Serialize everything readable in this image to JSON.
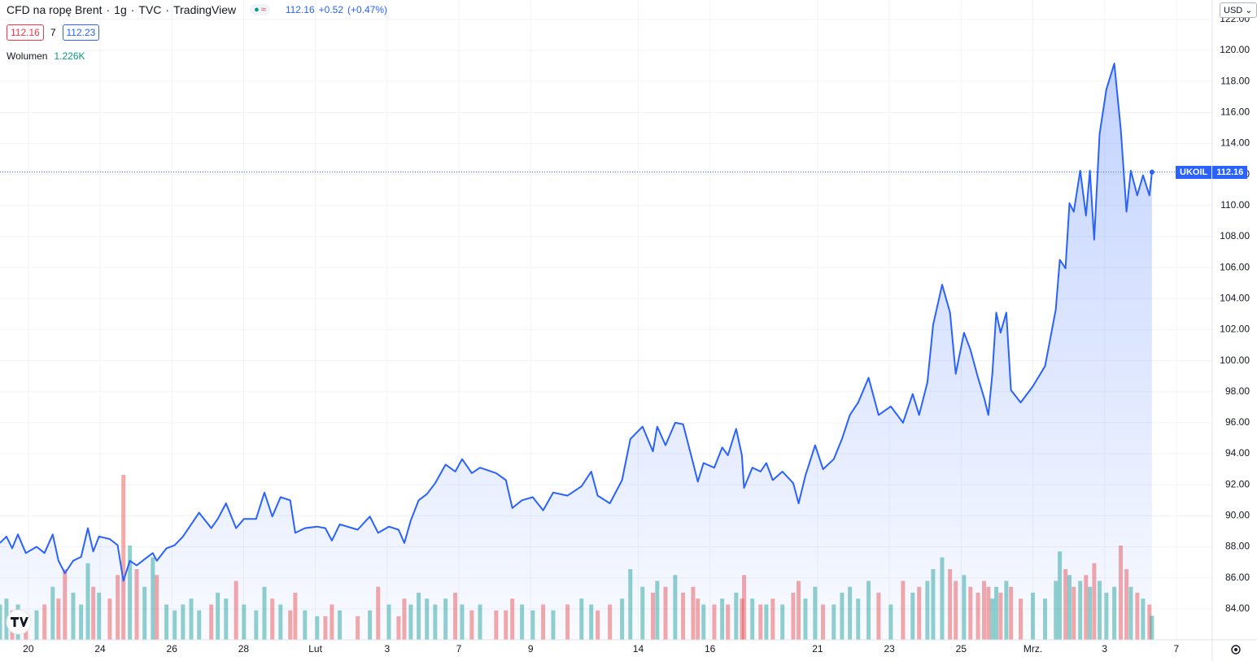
{
  "header": {
    "symbol": "CFD na ropę Brent",
    "interval": "1g",
    "source": "TVC",
    "platform": "TradingView",
    "last": "112.16",
    "change": "+0.52",
    "change_pct": "(+0.47%)",
    "sell": "112.16",
    "spread": "7",
    "buy": "112.23",
    "volume_readout": "1.226K",
    "currency": "USD",
    "ticker": "UKOIL"
  },
  "chart_data": {
    "type": "line",
    "color": "#2962ff",
    "grid": true,
    "x": [
      -0.79,
      -0.61,
      -0.45,
      -0.29,
      -0.07,
      0.23,
      0.45,
      0.68,
      0.84,
      1.02,
      1.25,
      1.47,
      1.66,
      1.81,
      1.97,
      2.27,
      2.49,
      2.65,
      2.83,
      3.02,
      3.24,
      3.47,
      3.58,
      3.85,
      4.08,
      4.31,
      4.54,
      4.76,
      5.1,
      5.28,
      5.51,
      5.79,
      6.01,
      6.35,
      6.58,
      6.8,
      7.03,
      7.3,
      7.44,
      7.71,
      8.05,
      8.28,
      8.46,
      8.68,
      9.18,
      9.52,
      9.75,
      10.05,
      10.32,
      10.48,
      10.66,
      10.88,
      11.11,
      11.34,
      11.63,
      11.9,
      12.09,
      12.36,
      12.59,
      13.04,
      13.31,
      13.49,
      13.76,
      14.06,
      14.35,
      14.63,
      15.03,
      15.42,
      15.69,
      15.87,
      16.21,
      16.55,
      16.78,
      17.12,
      17.41,
      17.53,
      17.76,
      18.03,
      18.25,
      18.53,
      18.66,
      18.82,
      19.12,
      19.34,
      19.5,
      19.73,
      19.89,
      19.95,
      20.18,
      20.41,
      20.57,
      20.75,
      21.02,
      21.32,
      21.47,
      21.66,
      21.93,
      22.15,
      22.45,
      22.68,
      22.9,
      23.13,
      23.42,
      23.7,
      24.04,
      24.38,
      24.65,
      24.83,
      25.06,
      25.22,
      25.47,
      25.69,
      25.85,
      26.08,
      26.26,
      26.47,
      26.64,
      26.76,
      26.87,
      26.98,
      27.1,
      27.26,
      27.39,
      27.66,
      28.0,
      28.34,
      28.64,
      28.75,
      28.91,
      29.02,
      29.14,
      29.32,
      29.48,
      29.59,
      29.71,
      29.86,
      30.05,
      30.27,
      30.45,
      30.61,
      30.73,
      30.91,
      31.07,
      31.25,
      31.32
    ],
    "series": [
      {
        "name": "UKOIL",
        "color": "#2962ff",
        "values": [
          88.25,
          88.66,
          87.9,
          88.8,
          87.6,
          88.0,
          87.6,
          88.8,
          87.1,
          86.3,
          87.1,
          87.35,
          89.2,
          87.7,
          88.66,
          88.5,
          88.1,
          85.8,
          87.1,
          86.8,
          87.2,
          87.6,
          87.1,
          87.9,
          88.1,
          88.66,
          89.45,
          90.2,
          89.2,
          89.8,
          90.8,
          89.2,
          89.8,
          89.8,
          91.5,
          89.95,
          91.2,
          91.0,
          88.9,
          89.2,
          89.3,
          89.2,
          88.4,
          89.45,
          89.1,
          89.95,
          88.9,
          89.3,
          89.1,
          88.25,
          89.7,
          91.0,
          91.4,
          92.1,
          93.3,
          92.85,
          93.65,
          92.75,
          93.1,
          92.75,
          92.3,
          90.5,
          91.0,
          91.2,
          90.35,
          91.5,
          91.3,
          91.9,
          92.85,
          91.3,
          90.8,
          92.3,
          94.95,
          95.75,
          94.15,
          95.75,
          94.55,
          96.0,
          95.9,
          93.4,
          92.2,
          93.4,
          93.1,
          94.4,
          93.9,
          95.6,
          93.9,
          91.8,
          93.1,
          92.85,
          93.4,
          92.3,
          92.85,
          92.1,
          90.8,
          92.6,
          94.55,
          93.0,
          93.65,
          94.95,
          96.5,
          97.3,
          98.9,
          96.5,
          97.05,
          96.0,
          97.85,
          96.5,
          98.6,
          102.3,
          104.9,
          103.1,
          99.15,
          101.8,
          100.7,
          98.9,
          97.6,
          96.5,
          99.15,
          103.1,
          101.8,
          103.1,
          98.1,
          97.3,
          98.35,
          99.65,
          103.3,
          106.5,
          105.95,
          110.15,
          109.6,
          112.25,
          109.35,
          112.25,
          107.8,
          114.6,
          117.5,
          119.15,
          114.9,
          109.6,
          112.25,
          110.65,
          111.95,
          110.65,
          112.16
        ]
      },
      {
        "name": "Wolumen",
        "axis": "y2",
        "up_color": "#26a69a",
        "down_color": "#ef5350",
        "values": [
          1.8,
          2.1,
          1.5,
          1.8,
          1.2,
          1.5,
          1.8,
          2.7,
          2.1,
          3.6,
          2.4,
          1.8,
          3.9,
          2.7,
          2.4,
          2.1,
          3.3,
          8.4,
          4.8,
          3.6,
          2.7,
          4.2,
          3.3,
          1.8,
          1.5,
          1.8,
          2.1,
          1.5,
          1.8,
          2.4,
          2.1,
          3.0,
          1.8,
          1.5,
          2.7,
          2.1,
          1.8,
          1.5,
          2.4,
          1.5,
          1.2,
          1.2,
          1.8,
          1.5,
          1.2,
          1.5,
          2.7,
          1.8,
          1.2,
          2.1,
          1.8,
          2.4,
          2.1,
          1.8,
          2.1,
          2.4,
          1.8,
          1.5,
          1.8,
          1.5,
          1.5,
          2.1,
          1.8,
          1.5,
          1.8,
          1.5,
          1.8,
          2.1,
          1.8,
          1.5,
          1.8,
          2.1,
          3.6,
          2.7,
          2.4,
          3.0,
          2.7,
          3.3,
          2.4,
          2.7,
          2.1,
          1.8,
          1.8,
          2.1,
          1.8,
          2.4,
          2.1,
          3.3,
          2.1,
          1.8,
          1.8,
          2.1,
          1.8,
          2.4,
          3.0,
          2.1,
          2.7,
          1.8,
          1.8,
          2.4,
          2.7,
          2.1,
          3.0,
          2.4,
          1.8,
          3.0,
          2.4,
          2.7,
          3.0,
          3.6,
          4.2,
          3.6,
          3.0,
          3.3,
          2.7,
          2.4,
          3.0,
          2.7,
          2.1,
          2.7,
          2.4,
          3.0,
          2.7,
          2.1,
          2.4,
          2.1,
          3.0,
          4.5,
          3.6,
          3.3,
          2.7,
          3.0,
          3.3,
          2.7,
          3.9,
          3.0,
          2.4,
          2.7,
          4.8,
          3.6,
          2.7,
          2.4,
          2.1,
          1.8,
          1.226
        ]
      }
    ],
    "xlim": [
      -0.79,
      33.0
    ],
    "xticks": [
      {
        "value": 0,
        "label": "20"
      },
      {
        "value": 2,
        "label": "24"
      },
      {
        "value": 4,
        "label": "26"
      },
      {
        "value": 6,
        "label": "28"
      },
      {
        "value": 8,
        "label": "Lut"
      },
      {
        "value": 10,
        "label": "3"
      },
      {
        "value": 12,
        "label": "7"
      },
      {
        "value": 14,
        "label": "9"
      },
      {
        "value": 17,
        "label": "14"
      },
      {
        "value": 19,
        "label": "16"
      },
      {
        "value": 22,
        "label": "21"
      },
      {
        "value": 24,
        "label": "23"
      },
      {
        "value": 26,
        "label": "25"
      },
      {
        "value": 28,
        "label": "Mrz."
      },
      {
        "value": 30,
        "label": "3"
      },
      {
        "value": 32,
        "label": "7"
      }
    ],
    "ylim": [
      82.0,
      123.25
    ],
    "yticks": [
      {
        "value": 84,
        "label": "84.00"
      },
      {
        "value": 86,
        "label": "86.00"
      },
      {
        "value": 88,
        "label": "88.00"
      },
      {
        "value": 90,
        "label": "90.00"
      },
      {
        "value": 92,
        "label": "92.00"
      },
      {
        "value": 94,
        "label": "94.00"
      },
      {
        "value": 96,
        "label": "96.00"
      },
      {
        "value": 98,
        "label": "98.00"
      },
      {
        "value": 100,
        "label": "100.00"
      },
      {
        "value": 102,
        "label": "102.00"
      },
      {
        "value": 104,
        "label": "104.00"
      },
      {
        "value": 106,
        "label": "106.00"
      },
      {
        "value": 108,
        "label": "108.00"
      },
      {
        "value": 110,
        "label": "110.00"
      },
      {
        "value": 112,
        "label": "112.00"
      },
      {
        "value": 114,
        "label": "114.00"
      },
      {
        "value": 116,
        "label": "116.00"
      },
      {
        "value": 118,
        "label": "118.00"
      },
      {
        "value": 120,
        "label": "120.00"
      },
      {
        "value": 122,
        "label": "122.00"
      }
    ],
    "y2lim": [
      0,
      12
    ]
  }
}
